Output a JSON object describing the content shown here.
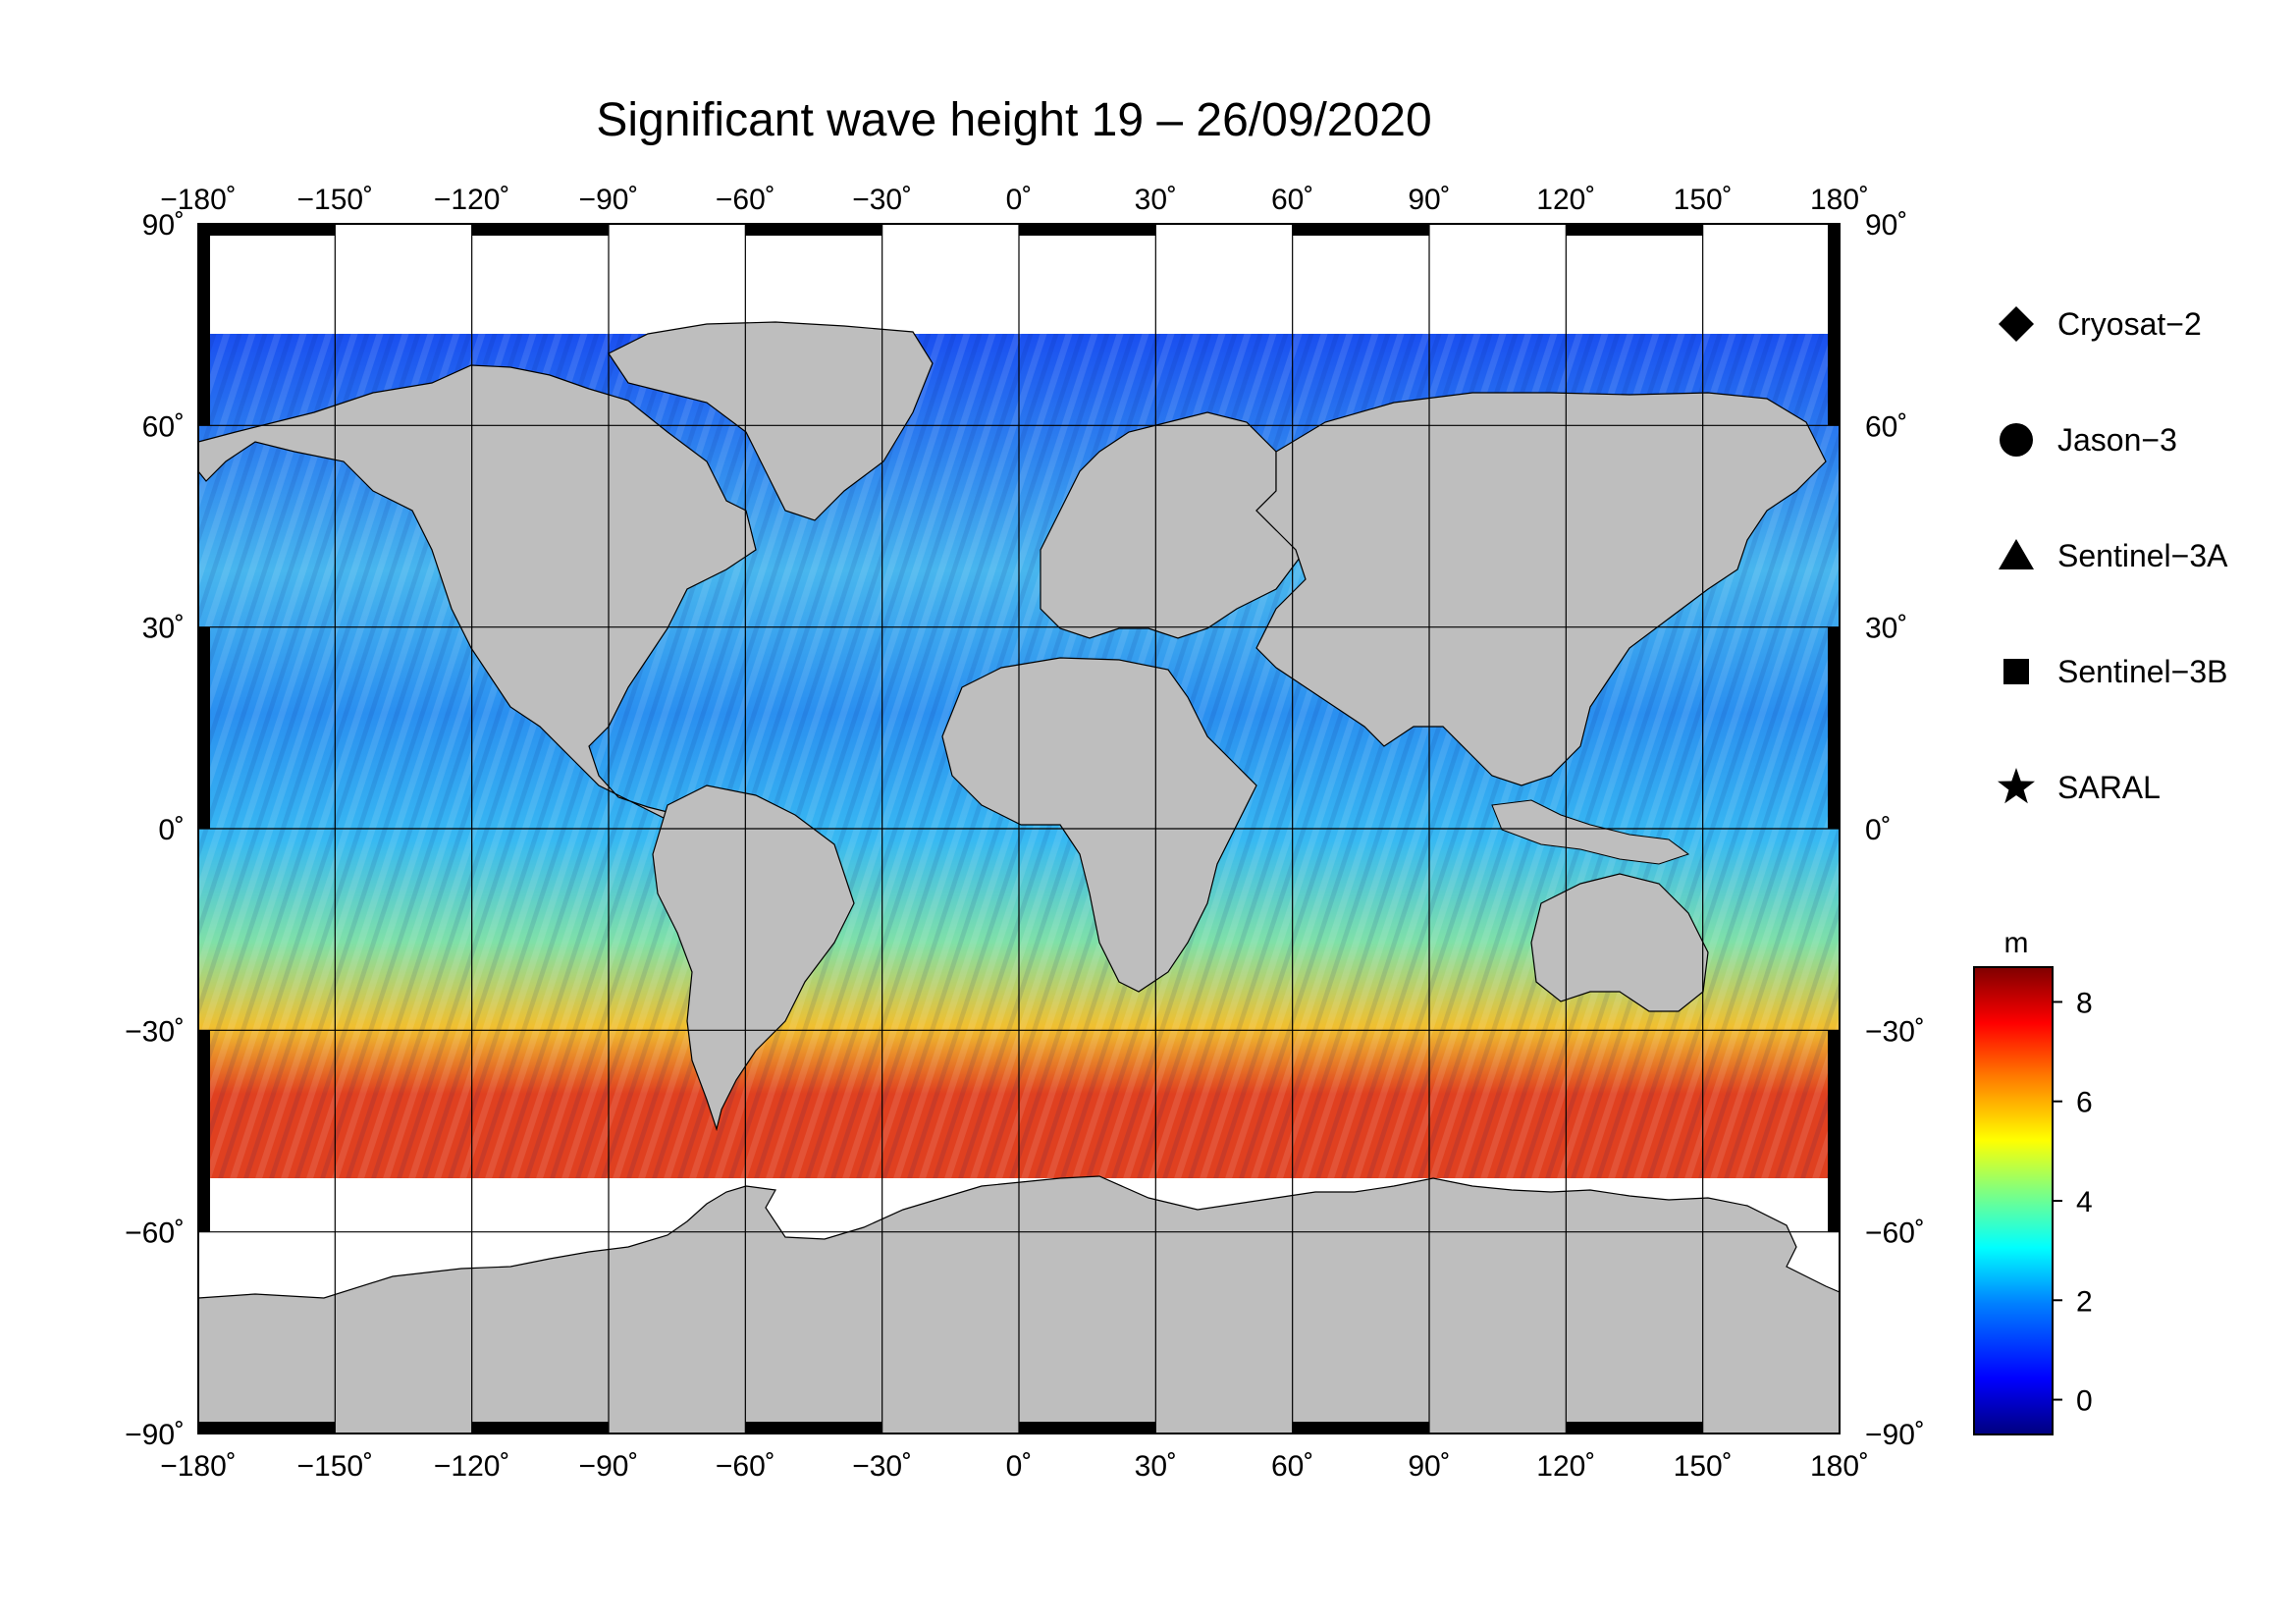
{
  "title": "Significant wave height 19 – 26/09/2020",
  "map": {
    "lon_ticks": [
      "−180˚",
      "−150˚",
      "−120˚",
      "−90˚",
      "−60˚",
      "−30˚",
      "0˚",
      "30˚",
      "60˚",
      "90˚",
      "120˚",
      "150˚",
      "180˚"
    ],
    "lat_ticks_left": [
      "90˚",
      "60˚",
      "30˚",
      "0˚",
      "−30˚",
      "−60˚",
      "−90˚"
    ],
    "lat_ticks_right": [
      "90˚",
      "60˚",
      "30˚",
      "0˚",
      "−30˚",
      "−60˚",
      "−90˚"
    ],
    "land_color": "#bebebe",
    "ocean_color": "#1f6cf0"
  },
  "legend": [
    {
      "label": "Cryosat−2",
      "marker": "diamond"
    },
    {
      "label": "Jason−3",
      "marker": "circle"
    },
    {
      "label": "Sentinel−3A",
      "marker": "triangle"
    },
    {
      "label": "Sentinel−3B",
      "marker": "square"
    },
    {
      "label": "SARAL",
      "marker": "star"
    }
  ],
  "colorbar": {
    "unit": "m",
    "ticks": [
      "8",
      "6",
      "4",
      "2",
      "0"
    ],
    "range": [
      -0.7,
      8.7
    ],
    "colors": [
      "#00007f",
      "#0000ff",
      "#0080ff",
      "#00ffff",
      "#80ff80",
      "#ffff00",
      "#ff8000",
      "#ff0000",
      "#7f0000"
    ]
  }
}
